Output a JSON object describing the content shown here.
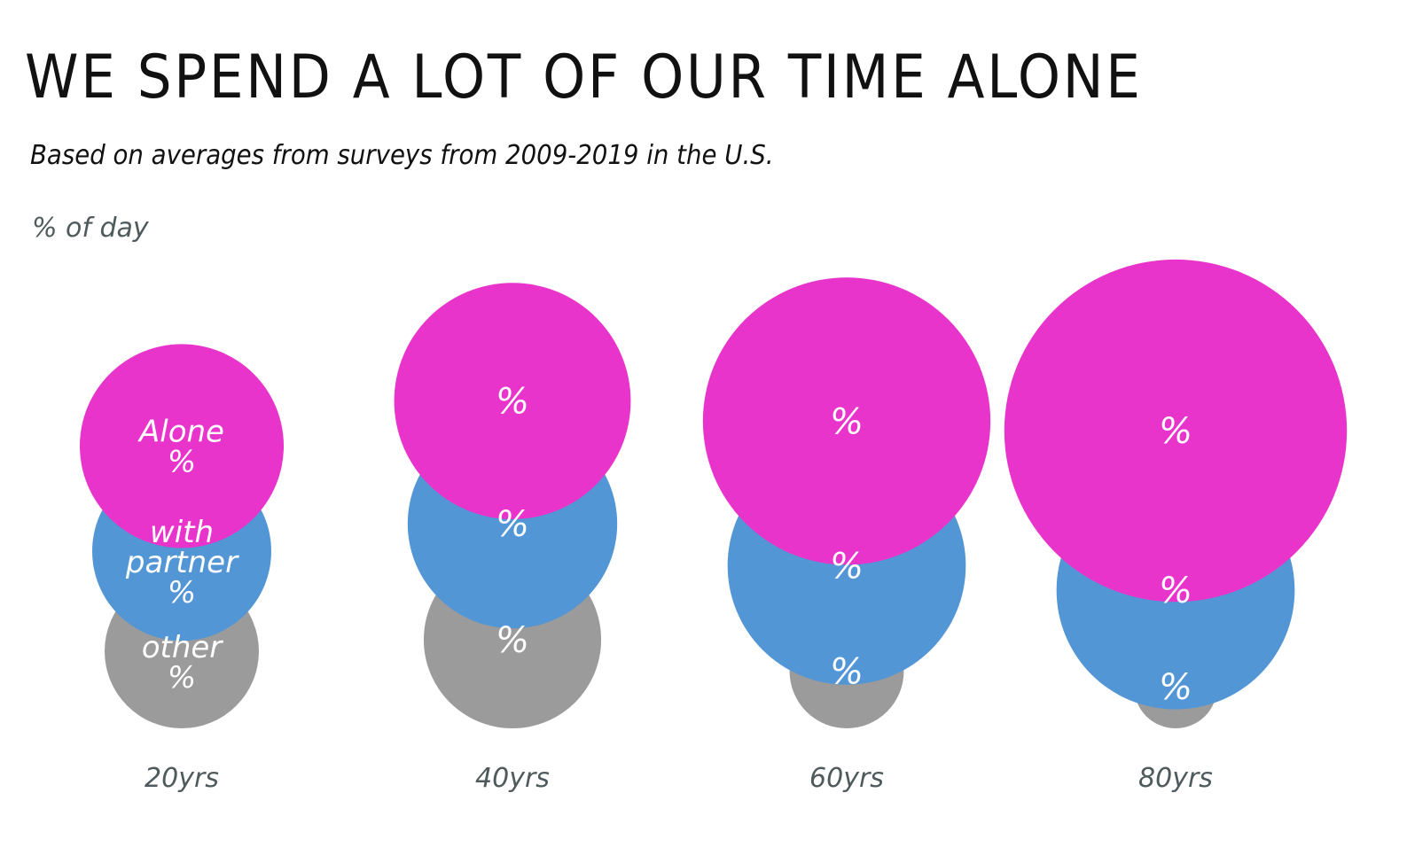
{
  "header": {
    "title": "WE SPEND A LOT OF OUR TIME ALONE",
    "subtitle": "Based on averages from surveys from 2009-2019 in the U.S.",
    "unit_label": "% of day"
  },
  "chart_data": {
    "type": "bubble",
    "title": "WE SPEND A LOT OF OUR TIME ALONE",
    "subtitle": "Based on averages from surveys from 2009-2019 in the U.S.",
    "unit": "% of day",
    "categories": [
      "20yrs",
      "40yrs",
      "60yrs",
      "80yrs"
    ],
    "series": [
      {
        "name": "Alone",
        "label_lines": [
          "Alone"
        ],
        "value_text": "%",
        "color": "#e934cc",
        "relative_size": [
          1.0,
          1.16,
          1.41,
          1.68
        ]
      },
      {
        "name": "with partner",
        "label_lines": [
          "with",
          "partner"
        ],
        "value_text": "%",
        "color": "#5396d6",
        "relative_size": [
          1.0,
          1.17,
          1.33,
          1.33
        ]
      },
      {
        "name": "other",
        "label_lines": [
          "other"
        ],
        "value_text": "%",
        "color": "#9b9b9b",
        "relative_size": [
          1.0,
          1.15,
          0.74,
          0.54
        ]
      }
    ],
    "legend": "none (series labels written inside first column of circles)",
    "grid": false
  }
}
